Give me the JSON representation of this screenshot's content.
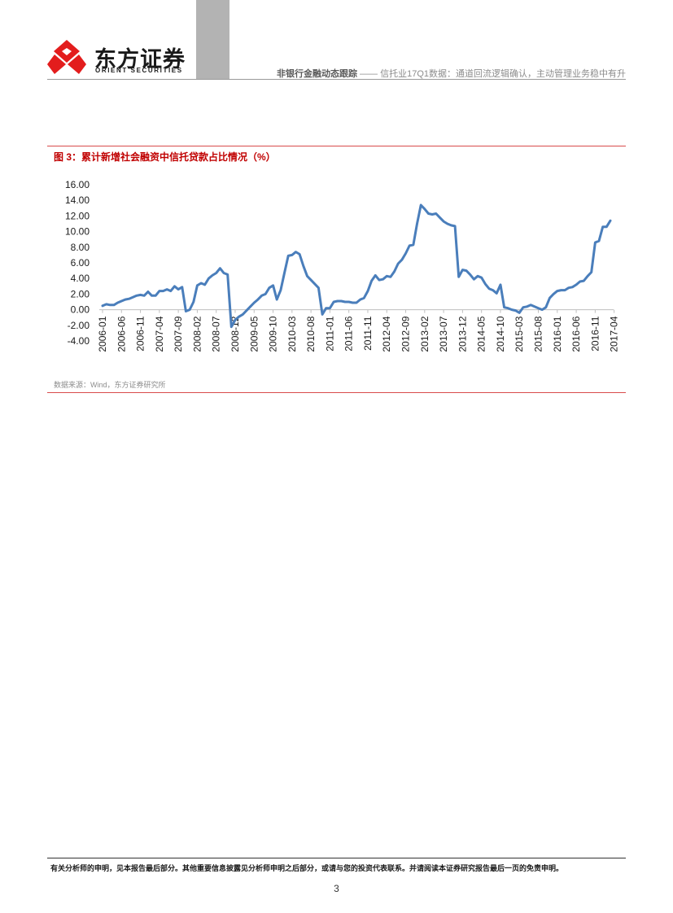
{
  "header": {
    "brand_cn": "东方证券",
    "brand_en": "ORIENT SECURITIES",
    "report_type": "非银行金融动态跟踪",
    "separator": "——",
    "report_title": "信托业17Q1数据：通道回流逻辑确认，主动管理业务稳中有升"
  },
  "figure": {
    "title": "图 3：累计新增社会融资中信托贷款占比情况（%）",
    "source": "数据来源：Wind，东方证券研究所"
  },
  "chart_data": {
    "type": "line",
    "title": "累计新增社会融资中信托贷款占比情况（%）",
    "xlabel": "",
    "ylabel": "",
    "ylim": [
      -4,
      16
    ],
    "y_ticks": [
      "16.00",
      "14.00",
      "12.00",
      "10.00",
      "8.00",
      "6.00",
      "4.00",
      "2.00",
      "0.00",
      "-2.00",
      "-4.00"
    ],
    "x_tick_labels": [
      "2006-01",
      "2006-06",
      "2006-11",
      "2007-04",
      "2007-09",
      "2008-02",
      "2008-07",
      "2008-12",
      "2009-05",
      "2009-10",
      "2010-03",
      "2010-08",
      "2011-01",
      "2011-06",
      "2011-11",
      "2012-04",
      "2012-09",
      "2013-02",
      "2013-07",
      "2013-12",
      "2014-05",
      "2014-10",
      "2015-03",
      "2015-08",
      "2016-01",
      "2016-06",
      "2016-11",
      "2017-04"
    ],
    "start": "2006-01",
    "color": "#4a7ebb",
    "series": [
      {
        "name": "信托贷款占比",
        "values": [
          0.5,
          0.7,
          0.6,
          0.6,
          0.9,
          1.1,
          1.3,
          1.4,
          1.6,
          1.8,
          1.9,
          1.8,
          2.3,
          1.8,
          1.8,
          2.4,
          2.4,
          2.6,
          2.4,
          3.0,
          2.6,
          2.9,
          -0.2,
          0.0,
          1.0,
          3.1,
          3.4,
          3.2,
          4.0,
          4.4,
          4.7,
          5.3,
          4.7,
          4.5,
          -2.2,
          -1.3,
          -0.9,
          -0.6,
          -0.1,
          0.4,
          0.9,
          1.3,
          1.8,
          2.0,
          2.8,
          3.1,
          1.3,
          2.5,
          4.7,
          6.9,
          7.0,
          7.4,
          7.1,
          5.6,
          4.3,
          3.8,
          3.3,
          2.8,
          -0.6,
          0.2,
          0.2,
          1.0,
          1.1,
          1.1,
          1.0,
          1.0,
          0.9,
          0.9,
          1.3,
          1.5,
          2.4,
          3.7,
          4.4,
          3.8,
          3.9,
          4.3,
          4.2,
          4.9,
          5.9,
          6.4,
          7.2,
          8.2,
          8.3,
          11.0,
          13.4,
          12.9,
          12.3,
          12.2,
          12.3,
          11.8,
          11.3,
          11.0,
          10.8,
          10.7,
          4.2,
          5.1,
          5.0,
          4.5,
          3.9,
          4.3,
          4.1,
          3.3,
          2.7,
          2.5,
          2.1,
          3.2,
          0.3,
          0.2,
          0.0,
          -0.1,
          -0.4,
          0.3,
          0.4,
          0.6,
          0.4,
          0.2,
          0.0,
          0.3,
          1.5,
          2.0,
          2.4,
          2.5,
          2.5,
          2.8,
          2.9,
          3.2,
          3.6,
          3.7,
          4.3,
          4.8,
          8.6,
          8.8,
          10.6,
          10.6,
          11.4
        ]
      }
    ]
  },
  "footer": {
    "disclaimer": "有关分析师的申明，见本报告最后部分。其他重要信息披露见分析师申明之后部分，或请与您的投资代表联系。并请阅读本证券研究报告最后一页的免责申明。",
    "page_number": "3"
  }
}
